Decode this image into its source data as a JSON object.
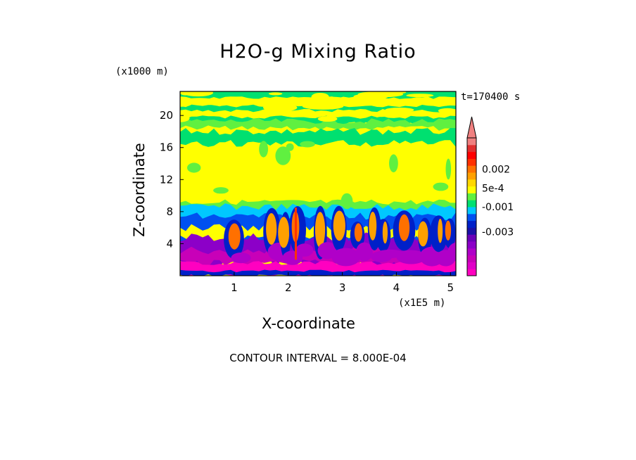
{
  "chart_data": {
    "type": "heatmap",
    "title": "H2O-g Mixing Ratio",
    "xlabel": "X-coordinate",
    "ylabel": "Z-coordinate",
    "x_unit": "(x1E5 m)",
    "y_unit": "(x1000 m)",
    "time_label": "t=170400 s",
    "contour_interval_label": "CONTOUR INTERVAL = 8.000E-04",
    "xlim": [
      0,
      5.1
    ],
    "ylim": [
      0,
      23
    ],
    "x_ticks": [
      "1",
      "2",
      "3",
      "4",
      "5"
    ],
    "x_tick_values": [
      1,
      2,
      3,
      4,
      5
    ],
    "y_ticks": [
      "4",
      "8",
      "12",
      "16",
      "20"
    ],
    "y_tick_values": [
      4,
      8,
      12,
      16,
      20
    ],
    "colorbar": {
      "colors": [
        "#ff00c0",
        "#e000c8",
        "#c800b8",
        "#b000c8",
        "#8c00c8",
        "#6a00b8",
        "#1a10a8",
        "#0020c8",
        "#0050f0",
        "#00c8ff",
        "#00e070",
        "#60f040",
        "#ffff00",
        "#ffd800",
        "#ffa000",
        "#ff7000",
        "#ff3000",
        "#ff0000",
        "#e03030",
        "#f08080"
      ],
      "labels": [
        "0.002",
        "5e-4",
        "-0.001",
        "-0.003"
      ],
      "label_values": [
        0.002,
        0.0005,
        -0.001,
        -0.003
      ]
    },
    "layers": [
      {
        "z_range": [
          0,
          1.5
        ],
        "level": "lowest magenta"
      },
      {
        "z_range": [
          1.5,
          4.5
        ],
        "level": "purple/violet with orange plumes"
      },
      {
        "z_range": [
          4.5,
          8
        ],
        "level": "blue/cyan band with orange plumes"
      },
      {
        "z_range": [
          8,
          19
        ],
        "level": "yellow/green"
      },
      {
        "z_range": [
          19,
          23
        ],
        "level": "green/yellow striped"
      }
    ]
  },
  "colors": {
    "background": "#ffffff",
    "axis": "#000000"
  }
}
